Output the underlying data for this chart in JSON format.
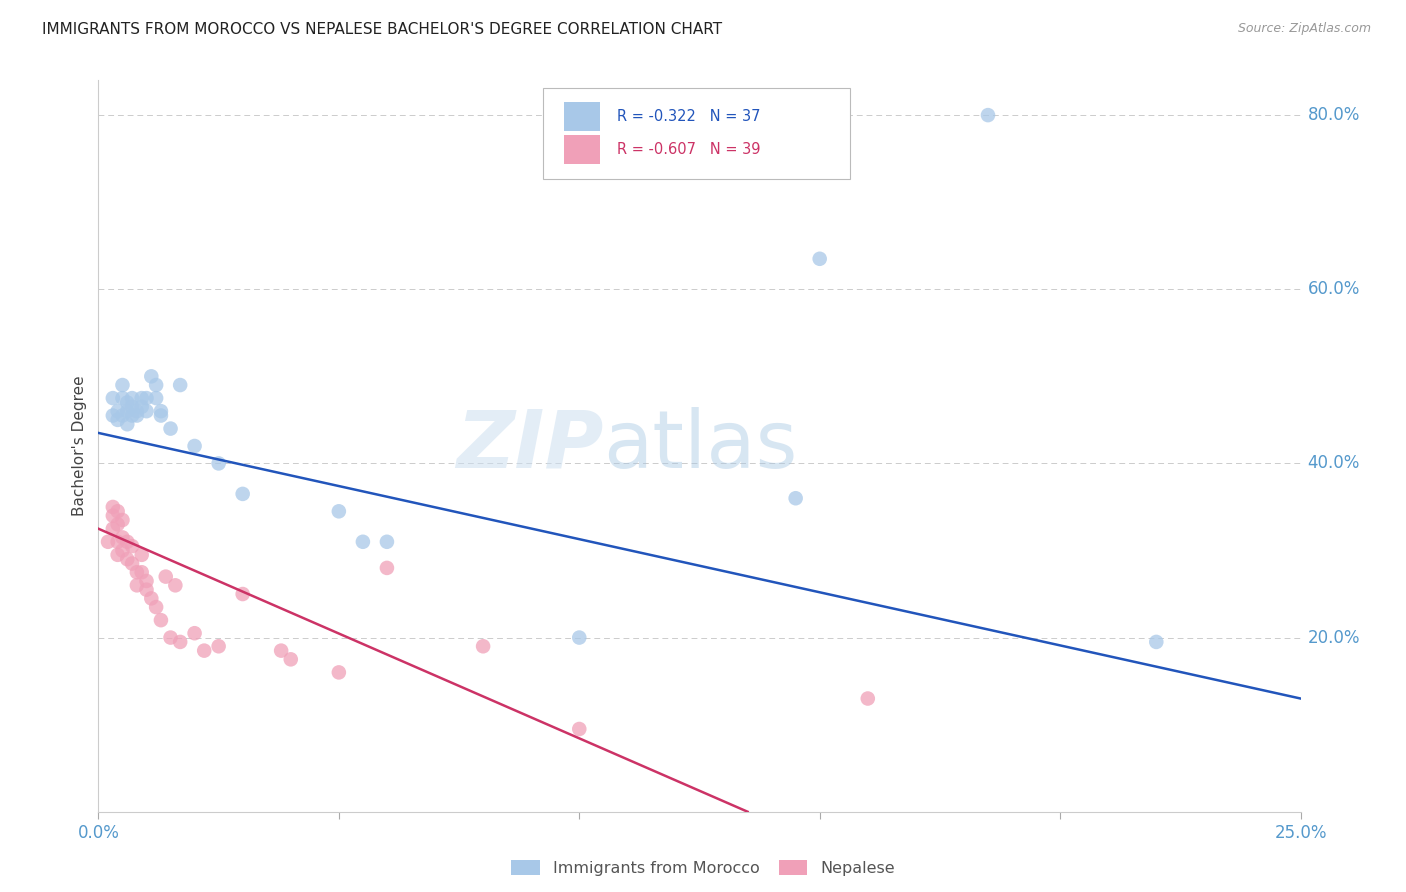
{
  "title": "IMMIGRANTS FROM MOROCCO VS NEPALESE BACHELOR'S DEGREE CORRELATION CHART",
  "source": "Source: ZipAtlas.com",
  "ylabel": "Bachelor's Degree",
  "watermark_zip": "ZIP",
  "watermark_atlas": "atlas",
  "legend_blue_r": "-0.322",
  "legend_blue_n": "37",
  "legend_pink_r": "-0.607",
  "legend_pink_n": "39",
  "xlim": [
    0.0,
    0.25
  ],
  "ylim": [
    0.0,
    0.84
  ],
  "blue_x": [
    0.007,
    0.005,
    0.005,
    0.005,
    0.006,
    0.006,
    0.006,
    0.007,
    0.007,
    0.008,
    0.008,
    0.009,
    0.009,
    0.01,
    0.01,
    0.011,
    0.012,
    0.012,
    0.013,
    0.013,
    0.015,
    0.017,
    0.02,
    0.025,
    0.03,
    0.05,
    0.055,
    0.06,
    0.1,
    0.145,
    0.15,
    0.185,
    0.22,
    0.003,
    0.004,
    0.004,
    0.003
  ],
  "blue_y": [
    0.455,
    0.49,
    0.455,
    0.475,
    0.47,
    0.46,
    0.445,
    0.465,
    0.475,
    0.46,
    0.455,
    0.475,
    0.465,
    0.475,
    0.46,
    0.5,
    0.49,
    0.475,
    0.46,
    0.455,
    0.44,
    0.49,
    0.42,
    0.4,
    0.365,
    0.345,
    0.31,
    0.31,
    0.2,
    0.36,
    0.635,
    0.8,
    0.195,
    0.455,
    0.46,
    0.45,
    0.475
  ],
  "pink_x": [
    0.002,
    0.003,
    0.004,
    0.004,
    0.005,
    0.005,
    0.006,
    0.006,
    0.007,
    0.007,
    0.008,
    0.008,
    0.009,
    0.009,
    0.01,
    0.01,
    0.011,
    0.012,
    0.013,
    0.014,
    0.015,
    0.016,
    0.017,
    0.02,
    0.022,
    0.025,
    0.03,
    0.038,
    0.04,
    0.05,
    0.06,
    0.08,
    0.1,
    0.16,
    0.003,
    0.003,
    0.004,
    0.004,
    0.005
  ],
  "pink_y": [
    0.31,
    0.325,
    0.31,
    0.295,
    0.315,
    0.3,
    0.31,
    0.29,
    0.305,
    0.285,
    0.275,
    0.26,
    0.295,
    0.275,
    0.265,
    0.255,
    0.245,
    0.235,
    0.22,
    0.27,
    0.2,
    0.26,
    0.195,
    0.205,
    0.185,
    0.19,
    0.25,
    0.185,
    0.175,
    0.16,
    0.28,
    0.19,
    0.095,
    0.13,
    0.35,
    0.34,
    0.345,
    0.33,
    0.335
  ],
  "blue_line_x": [
    0.0,
    0.25
  ],
  "blue_line_y": [
    0.435,
    0.13
  ],
  "pink_line_x": [
    0.0,
    0.135
  ],
  "pink_line_y": [
    0.325,
    0.0
  ],
  "blue_dot_color": "#a8c8e8",
  "blue_line_color": "#2255bb",
  "pink_dot_color": "#f0a0b8",
  "pink_line_color": "#cc3366",
  "bg_color": "#ffffff",
  "grid_color": "#cccccc",
  "title_color": "#222222",
  "right_label_color": "#5599cc",
  "bottom_label_color": "#5599cc",
  "ylabel_color": "#444444"
}
